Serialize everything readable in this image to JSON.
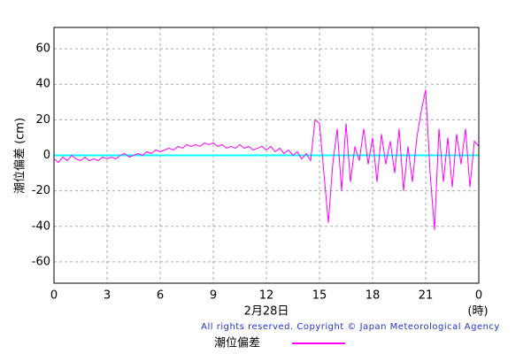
{
  "chart_data": {
    "type": "line",
    "y_label": "潮位偏差 (cm)",
    "x_label": "2月28日",
    "x_unit": "(時)",
    "copyright": "All rights reserved. Copyright © Japan Meteorological Agency",
    "x": [
      0,
      0.25,
      0.5,
      0.75,
      1,
      1.25,
      1.5,
      1.75,
      2,
      2.25,
      2.5,
      2.75,
      3,
      3.25,
      3.5,
      3.75,
      4,
      4.25,
      4.5,
      4.75,
      5,
      5.25,
      5.5,
      5.75,
      6,
      6.25,
      6.5,
      6.75,
      7,
      7.25,
      7.5,
      7.75,
      8,
      8.25,
      8.5,
      8.75,
      9,
      9.25,
      9.5,
      9.75,
      10,
      10.25,
      10.5,
      10.75,
      11,
      11.25,
      11.5,
      11.75,
      12,
      12.25,
      12.5,
      12.75,
      13,
      13.25,
      13.5,
      13.75,
      14,
      14.25,
      14.5,
      14.75,
      15,
      15.25,
      15.5,
      15.75,
      16,
      16.25,
      16.5,
      16.75,
      17,
      17.25,
      17.5,
      17.75,
      18,
      18.25,
      18.5,
      18.75,
      19,
      19.25,
      19.5,
      19.75,
      20,
      20.25,
      20.5,
      20.75,
      21,
      21.25,
      21.5,
      21.75,
      22,
      22.25,
      22.5,
      22.75,
      23,
      23.25,
      23.5,
      23.75,
      24
    ],
    "series": [
      {
        "name": "潮位偏差",
        "color": "#ff00ff",
        "values": [
          -2,
          -4,
          -1,
          -3,
          0,
          -2,
          -3,
          -1,
          -3,
          -2,
          -3,
          -1,
          -2,
          -1,
          -2,
          0,
          1,
          -1,
          0,
          1,
          0,
          2,
          1,
          3,
          2,
          3,
          4,
          3,
          5,
          4,
          6,
          5,
          6,
          5,
          7,
          6,
          7,
          5,
          6,
          4,
          5,
          4,
          6,
          4,
          5,
          3,
          4,
          5,
          3,
          5,
          2,
          4,
          1,
          3,
          0,
          2,
          -2,
          1,
          -3,
          20,
          18,
          -10,
          -38,
          -5,
          15,
          -20,
          18,
          -15,
          5,
          -3,
          15,
          -5,
          10,
          -15,
          12,
          -5,
          8,
          -10,
          15,
          -20,
          5,
          -15,
          10,
          25,
          37,
          -10,
          -42,
          15,
          -15,
          10,
          -18,
          12,
          -5,
          15,
          -18,
          8,
          5
        ]
      }
    ],
    "reference_line": {
      "value": 0,
      "color": "#00ffff"
    },
    "xlim": [
      0,
      24
    ],
    "xticks": [
      0,
      3,
      6,
      9,
      12,
      15,
      18,
      21,
      {
        "value": 24,
        "label": "0"
      }
    ],
    "ylim": [
      -72,
      72
    ],
    "yticks": [
      -60,
      -40,
      -20,
      0,
      20,
      40,
      60
    ],
    "grid": true
  }
}
